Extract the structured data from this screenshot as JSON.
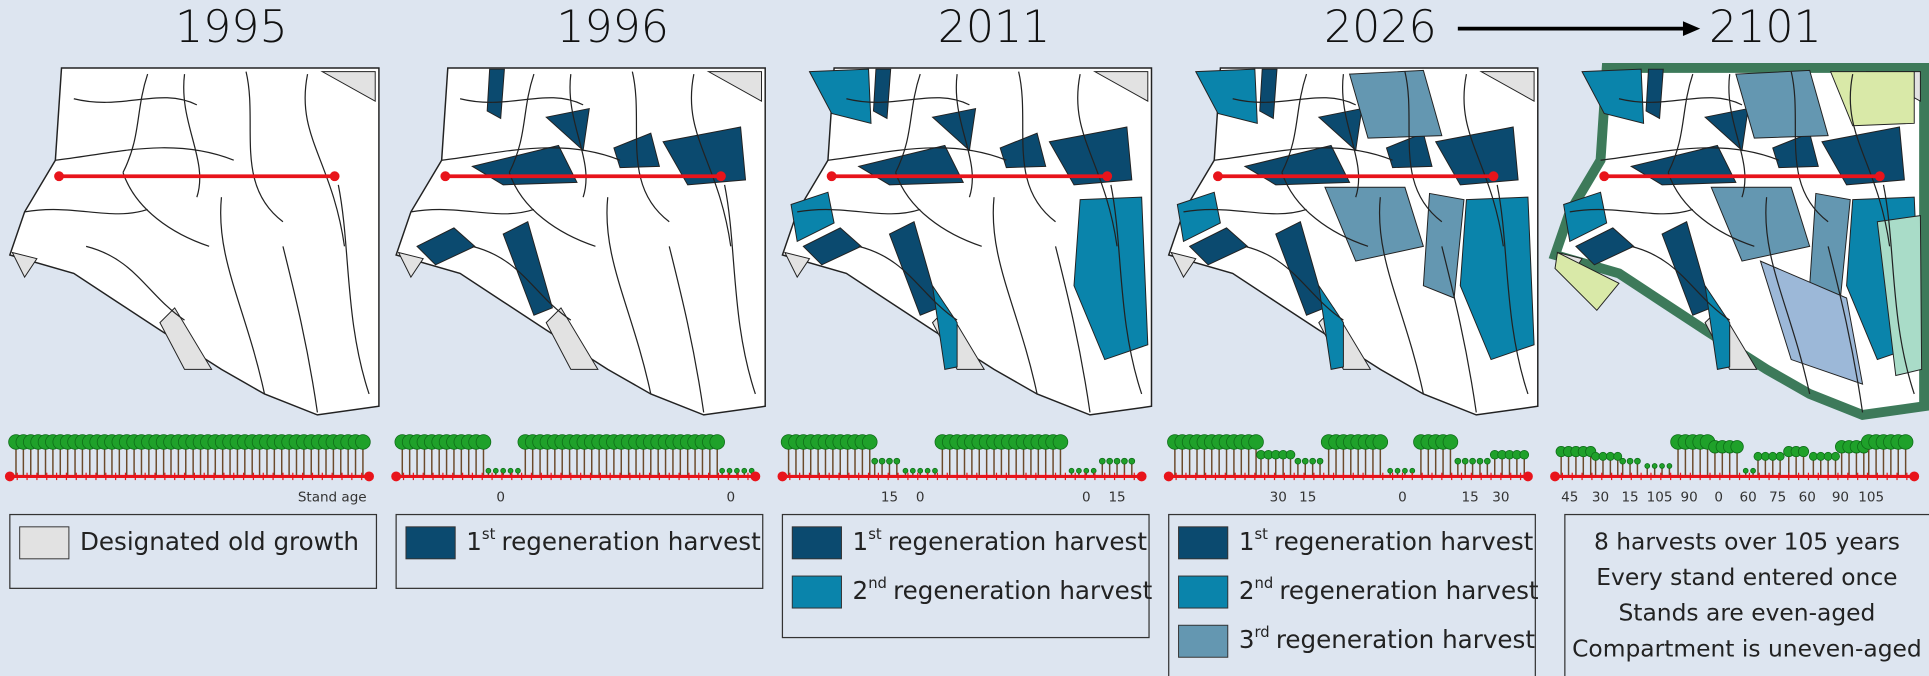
{
  "panels": [
    {
      "year": "1995",
      "age_labels": [
        "Stand age"
      ],
      "legend": [
        {
          "color": "#e2e2e2",
          "text": "Designated old growth"
        }
      ]
    },
    {
      "year": "1996",
      "age_labels": [
        "0",
        "0"
      ],
      "legend": [
        {
          "color": "#0b4a6f",
          "ordinal": "1",
          "suffix": "st",
          "text": "regeneration harvest"
        }
      ]
    },
    {
      "year": "2011",
      "age_labels": [
        "15",
        "0",
        "0",
        "15"
      ],
      "legend": [
        {
          "color": "#0b4a6f",
          "ordinal": "1",
          "suffix": "st",
          "text": "regeneration harvest"
        },
        {
          "color": "#0a84ab",
          "ordinal": "2",
          "suffix": "nd",
          "text": "regeneration harvest"
        }
      ]
    },
    {
      "year": "2026",
      "age_labels": [
        "30",
        "15",
        "0",
        "15",
        "30"
      ],
      "legend": [
        {
          "color": "#0b4a6f",
          "ordinal": "1",
          "suffix": "st",
          "text": "regeneration harvest"
        },
        {
          "color": "#0a84ab",
          "ordinal": "2",
          "suffix": "nd",
          "text": "regeneration harvest"
        },
        {
          "color": "#6497b1",
          "ordinal": "3",
          "suffix": "rd",
          "text": "regeneration harvest"
        }
      ]
    },
    {
      "year": "2101",
      "age_labels": [
        "45",
        "30",
        "15",
        "105",
        "90",
        "0",
        "60",
        "75",
        "60",
        "90",
        "105"
      ],
      "notes": [
        "8 harvests over 105 years",
        "Every stand entered once",
        "Stands are even-aged",
        "Compartment is uneven-aged"
      ]
    }
  ]
}
